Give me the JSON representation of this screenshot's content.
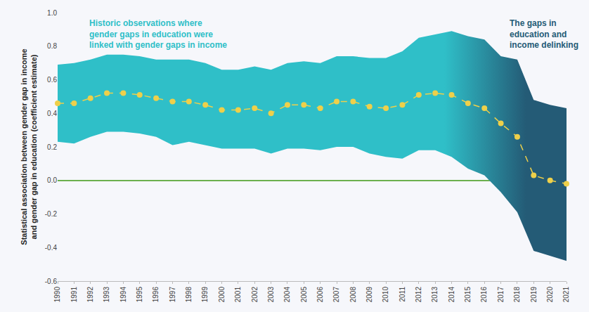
{
  "chart_data": {
    "type": "line",
    "y_label": "Statistical association between gender gap in income\nand gender gap in education (coefficient estimate)",
    "annotations": [
      "Historic observations where\ngender gaps in education were\nlinked with gender gaps in income",
      "The gaps in\neducation and\nincome delinking"
    ],
    "x": [
      1990,
      1991,
      1992,
      1993,
      1994,
      1995,
      1996,
      1997,
      1998,
      1999,
      2000,
      2001,
      2002,
      2003,
      2004,
      2005,
      2006,
      2007,
      2008,
      2009,
      2010,
      2011,
      2012,
      2013,
      2014,
      2015,
      2016,
      2017,
      2018,
      2019,
      2020,
      2021
    ],
    "series": [
      {
        "type": "band",
        "colors": [
          "#2fbfc8",
          "#245b76"
        ],
        "upper": [
          0.69,
          0.7,
          0.72,
          0.75,
          0.75,
          0.74,
          0.72,
          0.72,
          0.72,
          0.7,
          0.66,
          0.66,
          0.68,
          0.66,
          0.7,
          0.71,
          0.7,
          0.74,
          0.74,
          0.73,
          0.73,
          0.77,
          0.85,
          0.87,
          0.89,
          0.86,
          0.84,
          0.74,
          0.72,
          0.48,
          0.45,
          0.43
        ],
        "lower": [
          0.23,
          0.22,
          0.26,
          0.29,
          0.29,
          0.28,
          0.26,
          0.21,
          0.23,
          0.21,
          0.19,
          0.19,
          0.19,
          0.16,
          0.19,
          0.19,
          0.18,
          0.2,
          0.2,
          0.16,
          0.14,
          0.13,
          0.18,
          0.18,
          0.14,
          0.07,
          0.03,
          -0.07,
          -0.19,
          -0.42,
          -0.45,
          -0.48
        ]
      },
      {
        "type": "line",
        "color": "#eed04a",
        "line_style": "dashed",
        "marker": "circle",
        "values": [
          0.46,
          0.46,
          0.49,
          0.52,
          0.52,
          0.51,
          0.49,
          0.47,
          0.47,
          0.45,
          0.42,
          0.42,
          0.43,
          0.4,
          0.45,
          0.45,
          0.43,
          0.47,
          0.47,
          0.44,
          0.43,
          0.45,
          0.51,
          0.52,
          0.51,
          0.46,
          0.43,
          0.34,
          0.26,
          0.03,
          0.0,
          -0.02
        ]
      }
    ],
    "xlim": [
      1990,
      2021
    ],
    "xticks": [
      1990,
      1991,
      1992,
      1993,
      1994,
      1995,
      1996,
      1997,
      1998,
      1999,
      2000,
      2001,
      2002,
      2003,
      2004,
      2005,
      2006,
      2007,
      2008,
      2009,
      2010,
      2011,
      2012,
      2013,
      2014,
      2015,
      2016,
      2017,
      2018,
      2019,
      2020,
      2021
    ],
    "ylim": [
      -0.6,
      1.0
    ],
    "yticks": [
      {
        "value": 1.0,
        "label": "1.0"
      },
      0.8,
      0.6,
      0.4,
      0.2,
      {
        "value": 0,
        "label": "0.0"
      },
      -0.2,
      -0.4,
      -0.6
    ],
    "grid": false
  }
}
